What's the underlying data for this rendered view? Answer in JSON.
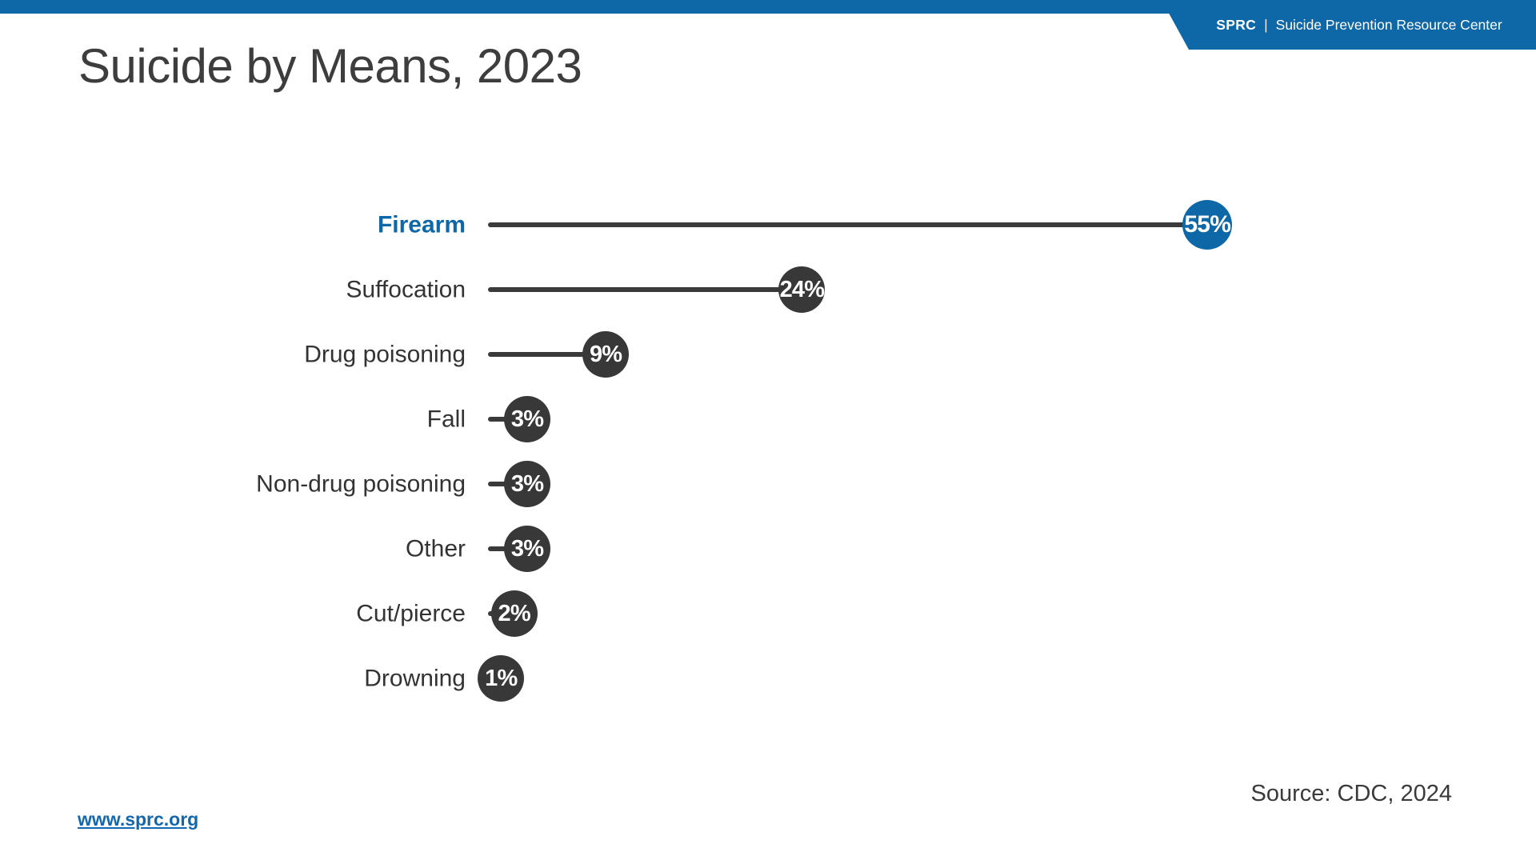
{
  "page": {
    "accent_blue": "#0e67a6",
    "marker_dark": "#383838",
    "background": "#ffffff"
  },
  "header": {
    "brand_abbr": "SPRC",
    "brand_separator": "|",
    "brand_name": "Suicide Prevention Resource Center"
  },
  "title": "Suicide by Means, 2023",
  "chart_data": {
    "type": "bar",
    "variant": "lollipop",
    "orientation": "horizontal",
    "title": "Suicide by Means, 2023",
    "categories": [
      "Firearm",
      "Suffocation",
      "Drug poisoning",
      "Fall",
      "Non-drug poisoning",
      "Other",
      "Cut/pierce",
      "Drowning"
    ],
    "values": [
      55,
      24,
      9,
      3,
      3,
      3,
      2,
      1
    ],
    "value_labels": [
      "55%",
      "24%",
      "9%",
      "3%",
      "3%",
      "3%",
      "2%",
      "1%"
    ],
    "unit": "%",
    "xlim": [
      0,
      55
    ],
    "grid": false,
    "legend": "none",
    "highlighted_category": "Firearm",
    "highlight_color": "#0e67a6",
    "marker_color": "#383838"
  },
  "footer": {
    "source": "Source: CDC, 2024",
    "link": "www.sprc.org"
  }
}
